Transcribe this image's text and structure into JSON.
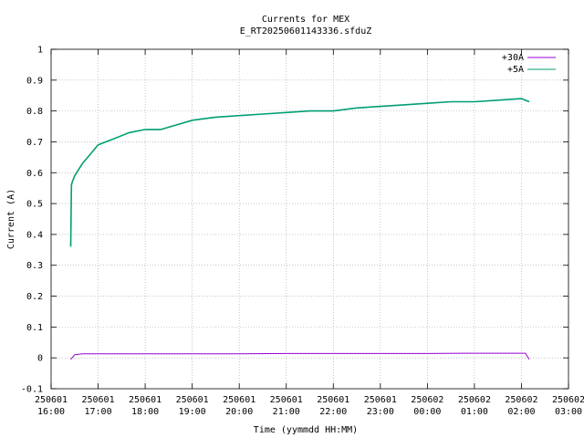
{
  "chart_data": {
    "type": "line",
    "title": "Currents for MEX",
    "subtitle": "E_RT20250601143336.sfduZ",
    "xlabel": "Time (yymmdd HH:MM)",
    "ylabel": "Current (A)",
    "ylim": [
      -0.1,
      1
    ],
    "yticks": [
      "-0.1",
      "0",
      "0.1",
      "0.2",
      "0.3",
      "0.4",
      "0.5",
      "0.6",
      "0.7",
      "0.8",
      "0.9",
      "1"
    ],
    "xlim": [
      "250601 16:00",
      "250602 03:00"
    ],
    "xticks": [
      {
        "date": "250601",
        "time": "16:00"
      },
      {
        "date": "250601",
        "time": "17:00"
      },
      {
        "date": "250601",
        "time": "18:00"
      },
      {
        "date": "250601",
        "time": "19:00"
      },
      {
        "date": "250601",
        "time": "20:00"
      },
      {
        "date": "250601",
        "time": "21:00"
      },
      {
        "date": "250601",
        "time": "22:00"
      },
      {
        "date": "250601",
        "time": "23:00"
      },
      {
        "date": "250602",
        "time": "00:00"
      },
      {
        "date": "250602",
        "time": "01:00"
      },
      {
        "date": "250602",
        "time": "02:00"
      },
      {
        "date": "250602",
        "time": "03:00"
      }
    ],
    "grid": true,
    "legend_position": "top-right",
    "series": [
      {
        "name": "+30A",
        "color": "#9400d3",
        "x": [
          "250601 16:25",
          "250601 16:30",
          "250601 16:40",
          "250601 17:00",
          "250601 18:00",
          "250601 19:00",
          "250601 20:00",
          "250601 21:00",
          "250601 22:00",
          "250601 23:00",
          "250602 00:00",
          "250602 01:00",
          "250602 02:00",
          "250602 02:05",
          "250602 02:10"
        ],
        "y": [
          -0.005,
          0.01,
          0.013,
          0.013,
          0.013,
          0.013,
          0.013,
          0.014,
          0.014,
          0.014,
          0.014,
          0.015,
          0.015,
          0.015,
          -0.005
        ]
      },
      {
        "name": "+5A",
        "color": "#009e73",
        "x": [
          "250601 16:25",
          "250601 16:26",
          "250601 16:27",
          "250601 16:30",
          "250601 16:40",
          "250601 16:50",
          "250601 17:00",
          "250601 17:20",
          "250601 17:40",
          "250601 18:00",
          "250601 18:20",
          "250601 18:40",
          "250601 19:00",
          "250601 19:30",
          "250601 20:00",
          "250601 20:30",
          "250601 21:00",
          "250601 21:30",
          "250601 22:00",
          "250601 22:30",
          "250601 23:00",
          "250601 23:30",
          "250602 00:00",
          "250602 00:30",
          "250602 01:00",
          "250602 01:30",
          "250602 02:00",
          "250602 02:10"
        ],
        "y": [
          0.36,
          0.56,
          0.57,
          0.59,
          0.63,
          0.66,
          0.69,
          0.71,
          0.73,
          0.74,
          0.74,
          0.755,
          0.77,
          0.78,
          0.785,
          0.79,
          0.795,
          0.8,
          0.8,
          0.81,
          0.815,
          0.82,
          0.825,
          0.83,
          0.83,
          0.835,
          0.84,
          0.83
        ]
      }
    ]
  }
}
